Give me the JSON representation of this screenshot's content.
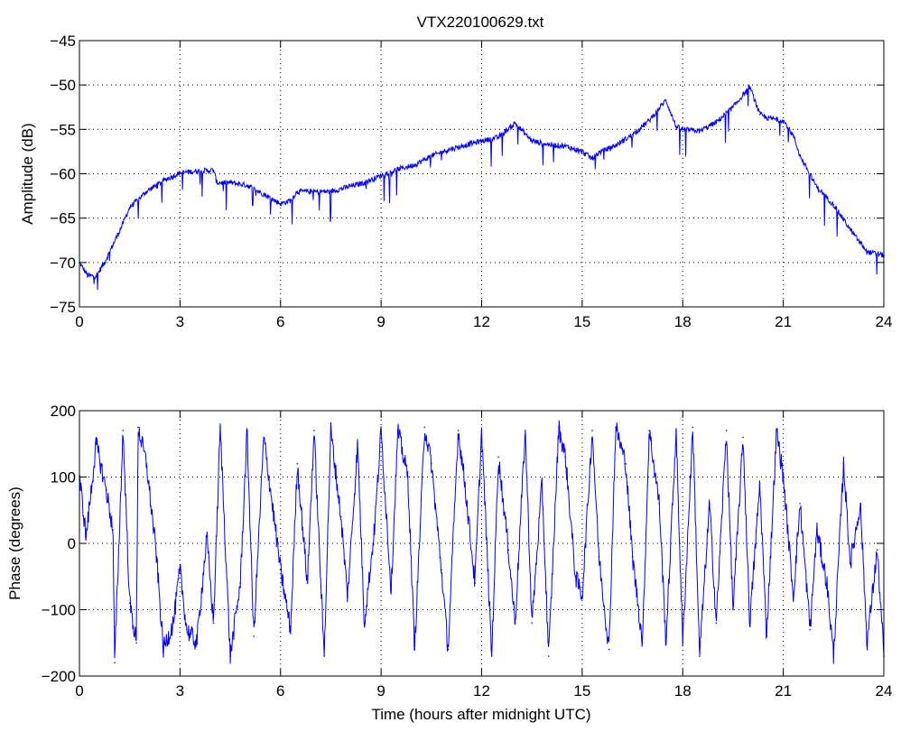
{
  "chart_data": [
    {
      "type": "line",
      "title": "VTX220100629.txt",
      "xlabel": "",
      "ylabel": "Amplitude (dB)",
      "xlim": [
        0,
        24
      ],
      "ylim": [
        -75,
        -45
      ],
      "xticks": [
        0,
        3,
        6,
        9,
        12,
        15,
        18,
        21,
        24
      ],
      "yticks": [
        -75,
        -70,
        -65,
        -60,
        -55,
        -50,
        -45
      ],
      "xtick_labels": [
        "0",
        "3",
        "6",
        "9",
        "12",
        "15",
        "18",
        "21",
        "24"
      ],
      "ytick_labels": [
        "−75",
        "−70",
        "−65",
        "−60",
        "−55",
        "−50",
        "−45"
      ],
      "grid": true,
      "line_color": "#0000ff",
      "series": [
        {
          "x": [
            0,
            0.25,
            0.5,
            0.75,
            1.0,
            1.25,
            1.5,
            2.0,
            2.5,
            3.0,
            3.5,
            4.0,
            4.1,
            4.5,
            5.0,
            5.5,
            6.0,
            6.3,
            6.5,
            7.0,
            7.5,
            8.0,
            8.5,
            9.0,
            9.5,
            10.0,
            10.5,
            11.0,
            11.5,
            12.0,
            12.5,
            13.0,
            13.3,
            13.5,
            14.0,
            14.5,
            15.0,
            15.3,
            15.5,
            16.0,
            16.5,
            17.0,
            17.5,
            17.8,
            18.0,
            18.5,
            19.0,
            19.5,
            20.0,
            20.3,
            20.5,
            21.0,
            21.3,
            21.5,
            22.0,
            22.5,
            23.0,
            23.5,
            24.0
          ],
          "y": [
            -70.0,
            -71.5,
            -71.5,
            -70.0,
            -68.0,
            -66.0,
            -63.8,
            -62.0,
            -60.8,
            -59.9,
            -59.7,
            -59.6,
            -61.0,
            -61.0,
            -61.3,
            -62.3,
            -63.4,
            -63.0,
            -62.0,
            -62.0,
            -62.0,
            -61.5,
            -61.0,
            -60.2,
            -59.5,
            -59.0,
            -58.0,
            -57.3,
            -56.8,
            -56.3,
            -55.9,
            -54.3,
            -55.5,
            -56.3,
            -56.7,
            -56.9,
            -57.5,
            -58.3,
            -57.6,
            -56.8,
            -55.6,
            -54.0,
            -51.7,
            -54.7,
            -55.0,
            -55.2,
            -54.2,
            -52.5,
            -50.2,
            -53.3,
            -53.7,
            -54.0,
            -55.7,
            -58.0,
            -61.5,
            -63.5,
            -66.3,
            -68.8,
            -69.2
          ]
        }
      ]
    },
    {
      "type": "line",
      "title": "",
      "xlabel": "Time (hours after midnight UTC)",
      "ylabel": "Phase (degrees)",
      "xlim": [
        0,
        24
      ],
      "ylim": [
        -200,
        200
      ],
      "xticks": [
        0,
        3,
        6,
        9,
        12,
        15,
        18,
        21,
        24
      ],
      "yticks": [
        -200,
        -100,
        0,
        100,
        200
      ],
      "xtick_labels": [
        "0",
        "3",
        "6",
        "9",
        "12",
        "15",
        "18",
        "21",
        "24"
      ],
      "ytick_labels": [
        "−200",
        "−100",
        "0",
        "100",
        "200"
      ],
      "grid": true,
      "line_color": "#0000ff",
      "series": [
        {
          "x": [
            0,
            0.2,
            0.5,
            0.8,
            1.0,
            1.05,
            1.3,
            1.5,
            1.7,
            1.75,
            2.0,
            2.3,
            2.5,
            2.8,
            3.0,
            3.2,
            3.5,
            3.8,
            4.0,
            4.2,
            4.5,
            4.8,
            5.0,
            5.2,
            5.5,
            5.8,
            6.0,
            6.3,
            6.5,
            6.8,
            7.0,
            7.3,
            7.5,
            7.8,
            8.0,
            8.3,
            8.5,
            8.8,
            9.0,
            9.3,
            9.5,
            9.8,
            10.0,
            10.3,
            10.5,
            10.8,
            11.0,
            11.3,
            11.5,
            11.8,
            12.0,
            12.3,
            12.5,
            12.8,
            13.0,
            13.3,
            13.5,
            13.8,
            14.0,
            14.3,
            14.5,
            14.8,
            15.0,
            15.3,
            15.5,
            15.8,
            16.0,
            16.3,
            16.5,
            16.8,
            17.0,
            17.3,
            17.5,
            17.8,
            18.0,
            18.3,
            18.5,
            18.8,
            19.0,
            19.3,
            19.5,
            19.8,
            20.0,
            20.3,
            20.5,
            20.8,
            21.0,
            21.3,
            21.5,
            21.8,
            22.0,
            22.3,
            22.5,
            22.8,
            23.0,
            23.3,
            23.5,
            23.8,
            24.0
          ],
          "y": [
            100,
            10,
            150,
            80,
            20,
            -180,
            170,
            -90,
            -150,
            175,
            120,
            -20,
            -160,
            -120,
            -40,
            -130,
            -150,
            10,
            -120,
            175,
            -170,
            -60,
            170,
            -140,
            160,
            40,
            -40,
            -130,
            120,
            -60,
            170,
            -170,
            170,
            40,
            -80,
            150,
            -120,
            20,
            170,
            -70,
            170,
            100,
            -160,
            175,
            120,
            -40,
            -160,
            170,
            90,
            -60,
            170,
            -170,
            130,
            -10,
            -120,
            170,
            -120,
            90,
            -170,
            175,
            130,
            -50,
            -80,
            170,
            -20,
            -160,
            175,
            120,
            -20,
            -150,
            170,
            60,
            -150,
            170,
            -150,
            175,
            -170,
            60,
            -120,
            170,
            -100,
            160,
            -120,
            90,
            -140,
            170,
            100,
            -80,
            60,
            -130,
            20,
            -60,
            -170,
            120,
            -30,
            60,
            -150,
            -10,
            -170
          ]
        }
      ]
    }
  ]
}
